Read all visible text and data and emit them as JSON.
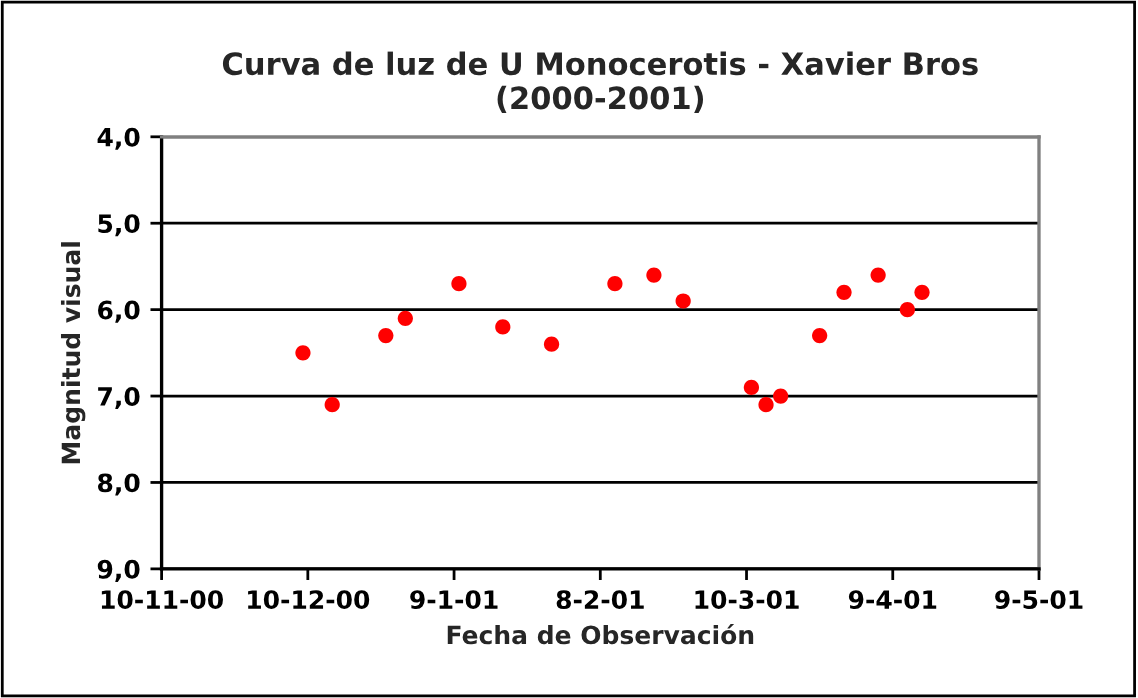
{
  "chart_data": {
    "type": "scatter",
    "title": "Curva de luz de U Monocerotis - Xavier Bros\n(2000-2001)",
    "xlabel": "Fecha de Observación",
    "ylabel": "Magnitud visual",
    "x": [
      "2000-12-09",
      "2000-12-15",
      "2000-12-26",
      "2000-12-30",
      "2001-01-10",
      "2001-01-19",
      "2001-01-29",
      "2001-02-11",
      "2001-02-19",
      "2001-02-25",
      "2001-03-11",
      "2001-03-14",
      "2001-03-17",
      "2001-03-25",
      "2001-03-30",
      "2001-04-06",
      "2001-04-12",
      "2001-04-15"
    ],
    "series": [
      {
        "color": "#ff0000",
        "values": [
          6.5,
          7.1,
          6.3,
          6.1,
          5.7,
          6.2,
          6.4,
          5.7,
          5.6,
          5.9,
          6.9,
          7.1,
          7.0,
          6.3,
          5.8,
          5.6,
          6.0,
          5.8
        ]
      }
    ],
    "xlim": [
      "2000-11-10",
      "2001-05-09"
    ],
    "xticks": [
      {
        "value": "2000-11-10",
        "label": "10-11-00"
      },
      {
        "value": "2000-12-10",
        "label": "10-12-00"
      },
      {
        "value": "2001-01-09",
        "label": "9-1-01"
      },
      {
        "value": "2001-02-08",
        "label": "8-2-01"
      },
      {
        "value": "2001-03-10",
        "label": "10-3-01"
      },
      {
        "value": "2001-04-09",
        "label": "9-4-01"
      },
      {
        "value": "2001-05-09",
        "label": "9-5-01"
      }
    ],
    "ylim": [
      9.0,
      4.0
    ],
    "yticks": [
      {
        "value": 4.0,
        "label": "4,0"
      },
      {
        "value": 5.0,
        "label": "5,0"
      },
      {
        "value": 6.0,
        "label": "6,0"
      },
      {
        "value": 7.0,
        "label": "7,0"
      },
      {
        "value": 8.0,
        "label": "8,0"
      },
      {
        "value": 9.0,
        "label": "9,0"
      }
    ],
    "grid": "y",
    "marker": "circle"
  }
}
